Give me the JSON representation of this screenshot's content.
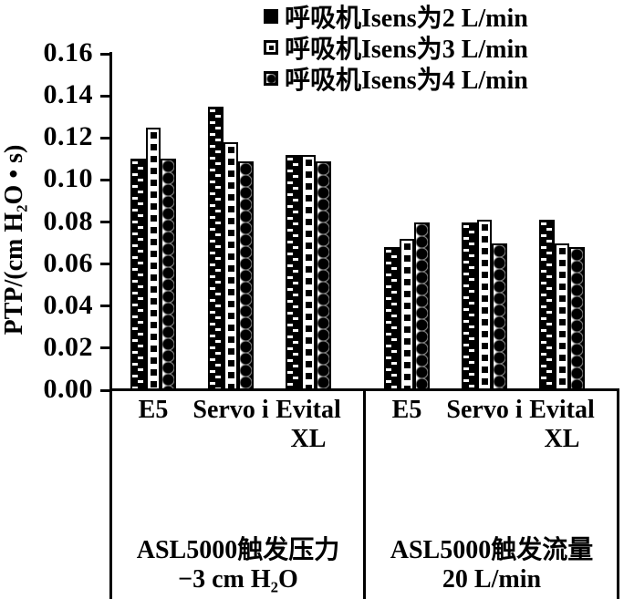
{
  "page": {
    "background": "#ffffff",
    "ink": "#000000"
  },
  "chart_data": {
    "type": "bar",
    "title": "",
    "xlabel": "",
    "ylabel": "PTP/(cm H₂O • s)",
    "ylim": [
      0,
      0.16
    ],
    "ytick_step": 0.02,
    "yticks": [
      "0.16",
      "0.14",
      "0.12",
      "0.10",
      "0.08",
      "0.06",
      "0.04",
      "0.02",
      "0.00"
    ],
    "grid": false,
    "legend_position": "top-right",
    "panels": [
      {
        "condition": [
          "ASL5000触发压力",
          "−3 cm H₂O"
        ],
        "categories": [
          "E5",
          "Servo i",
          "Evital XL"
        ]
      },
      {
        "condition": [
          "ASL5000触发流量",
          "20 L/min"
        ],
        "categories": [
          "E5",
          "Servo i",
          "Evital XL"
        ]
      }
    ],
    "series": [
      {
        "name": "呼吸机Isens为2 L/min",
        "marker": "solid-black-square",
        "values": [
          [
            0.11,
            0.135,
            0.112
          ],
          [
            0.068,
            0.08,
            0.081
          ]
        ]
      },
      {
        "name": "呼吸机Isens为3 L/min",
        "marker": "open-square-with-dot",
        "values": [
          [
            0.125,
            0.118,
            0.112
          ],
          [
            0.072,
            0.081,
            0.07
          ]
        ]
      },
      {
        "name": "呼吸机Isens为4 L/min",
        "marker": "half-shaded-square",
        "values": [
          [
            0.11,
            0.109,
            0.109
          ],
          [
            0.08,
            0.07,
            0.068
          ]
        ]
      }
    ]
  }
}
